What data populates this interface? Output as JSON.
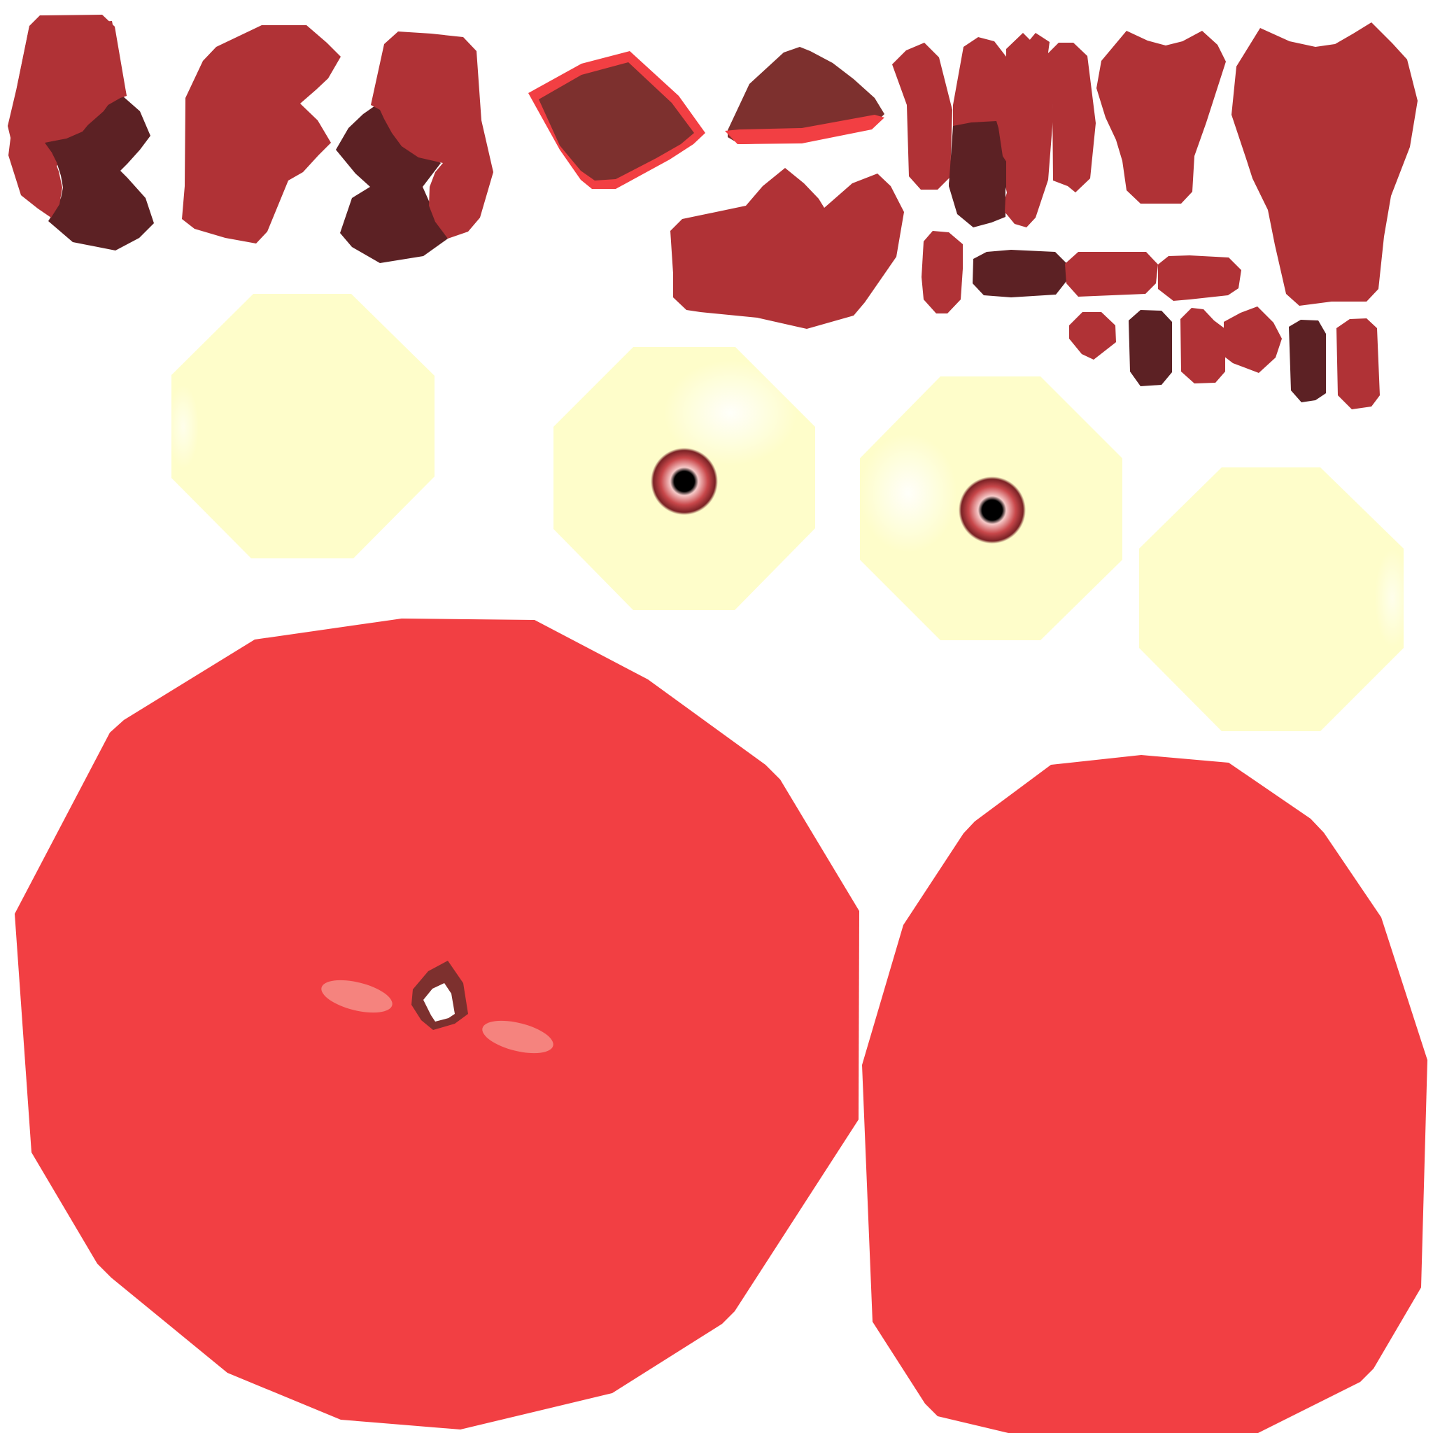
{
  "palette": {
    "background": "#ffffff",
    "skin_red": "#f23f43",
    "fur_dark_red": "#b03236",
    "shadow_maroon": "#5c2124",
    "mouth_brown": "#7d302e",
    "mouth_rim": "#f23f43",
    "eye_white": "#fefdca",
    "cheek_pink": "#f5837e",
    "iris_red": "#c8474a",
    "pupil_black": "#000000"
  },
  "parts": [
    {
      "kind": "paw-left-icon"
    },
    {
      "kind": "paw-middle-icon"
    },
    {
      "kind": "paw-right-icon"
    },
    {
      "kind": "mouth-upper-icon"
    },
    {
      "kind": "mouth-lower-icon"
    },
    {
      "kind": "head-tuft-icon"
    },
    {
      "kind": "limb-strip-icon"
    },
    {
      "kind": "ear-left-icon"
    },
    {
      "kind": "ear-right-icon"
    },
    {
      "kind": "eye-blank-icon"
    },
    {
      "kind": "eye-pupil-icon"
    },
    {
      "kind": "face-body-icon"
    },
    {
      "kind": "back-body-icon"
    }
  ]
}
